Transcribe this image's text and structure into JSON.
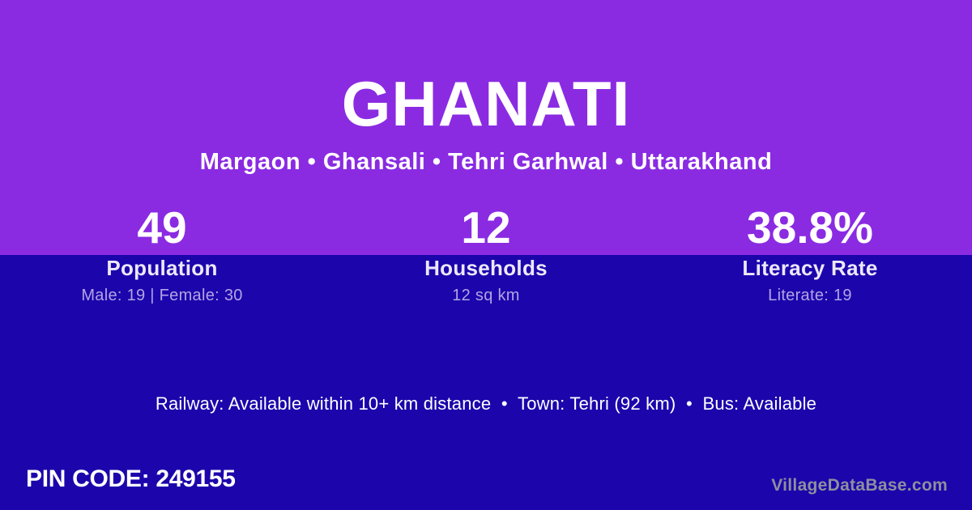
{
  "colors": {
    "top_bg": "#8A2BE2",
    "bottom_bg": "#1B05AB",
    "text": "#FFFFFF",
    "label": "#EDE7FA",
    "detail": "#B3A4E4",
    "watermark": "#8F8F9E"
  },
  "header": {
    "title": "GHANATI",
    "subtitle": "Margaon • Ghansali • Tehri Garhwal • Uttarakhand"
  },
  "stats": [
    {
      "value": "49",
      "label": "Population",
      "detail": "Male: 19 | Female: 30"
    },
    {
      "value": "12",
      "label": "Households",
      "detail": "12 sq km"
    },
    {
      "value": "38.8%",
      "label": "Literacy Rate",
      "detail": "Literate: 19"
    }
  ],
  "transport_line": "Railway: Available within 10+ km distance  •  Town: Tehri (92 km)  •  Bus: Available",
  "pin_code": "PIN CODE: 249155",
  "watermark": "VillageDataBase.com"
}
